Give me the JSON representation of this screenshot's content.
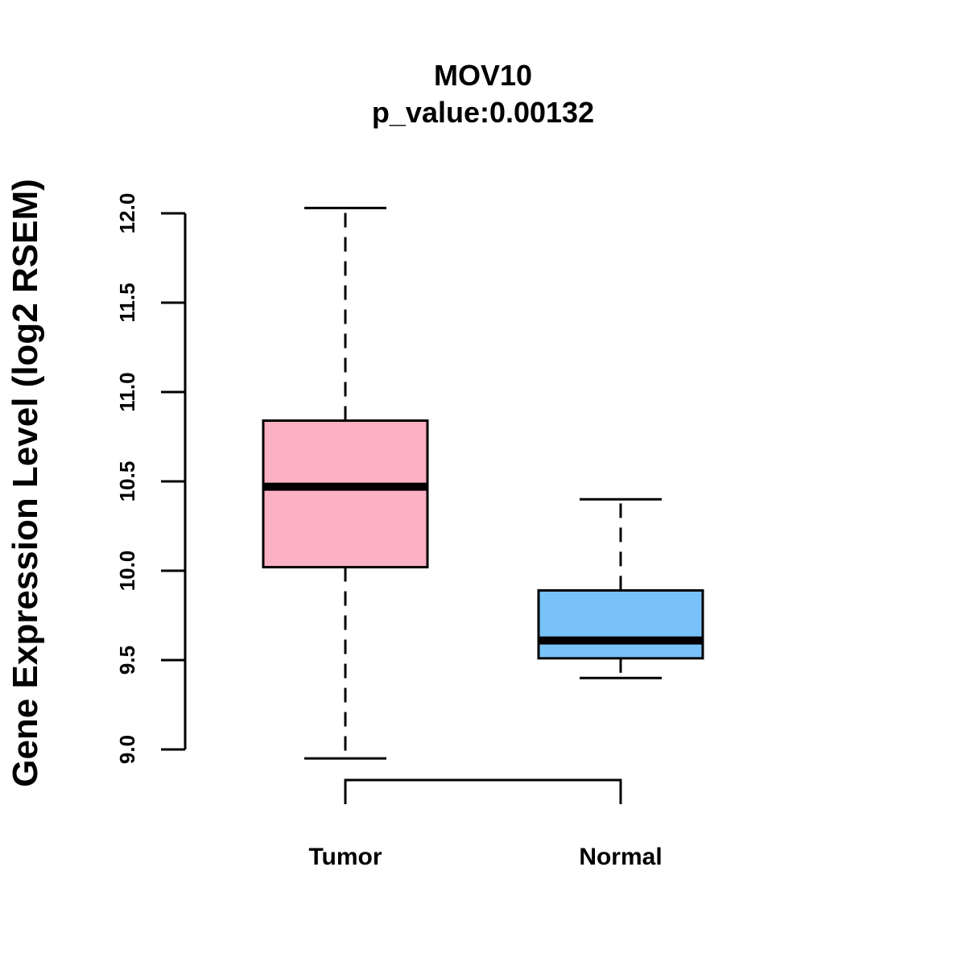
{
  "chart_data": {
    "type": "boxplot",
    "title": "MOV10",
    "subtitle": "p_value:0.00132",
    "xlabel": "",
    "ylabel": "Gene Expression Level (log2 RSEM)",
    "ylim": [
      8.85,
      12.05
    ],
    "yticks": [
      9.0,
      9.5,
      10.0,
      10.5,
      11.0,
      11.5,
      12.0
    ],
    "ytick_labels": [
      "9.0",
      "9.5",
      "10.0",
      "10.5",
      "11.0",
      "11.5",
      "12.0"
    ],
    "categories": [
      "Tumor",
      "Normal"
    ],
    "series": [
      {
        "name": "Tumor",
        "whisker_low": 8.95,
        "q1": 10.02,
        "median": 10.47,
        "q3": 10.84,
        "whisker_high": 12.03,
        "color": "#FBB1C3"
      },
      {
        "name": "Normal",
        "whisker_low": 9.4,
        "q1": 9.51,
        "median": 9.61,
        "q3": 9.89,
        "whisker_high": 10.4,
        "color": "#79C1F9"
      }
    ],
    "bracket": [
      "Tumor",
      "Normal"
    ]
  }
}
